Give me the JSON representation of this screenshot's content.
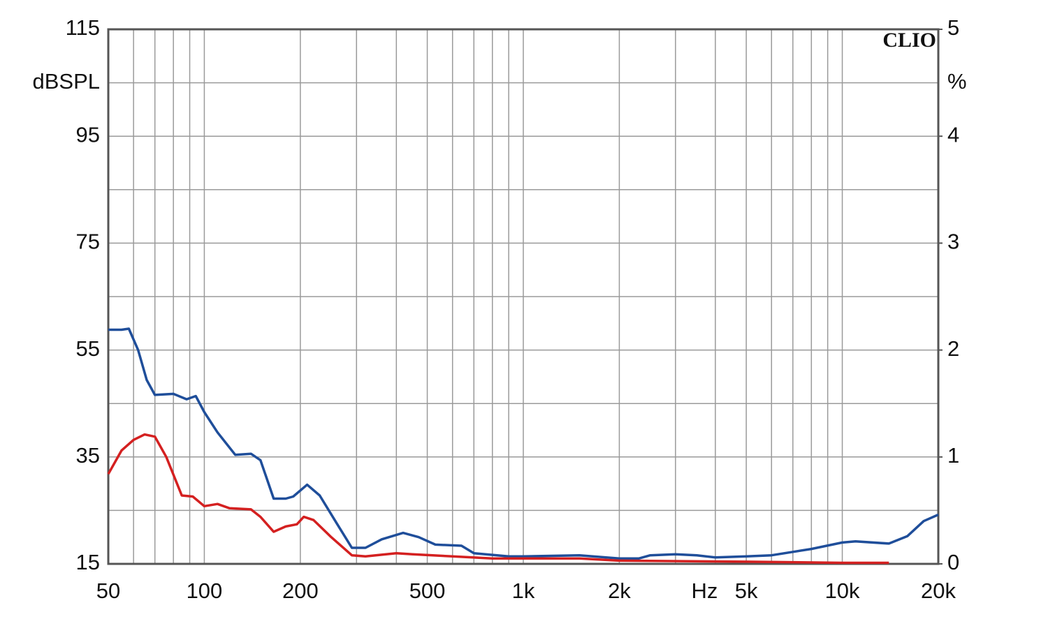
{
  "chart_data": {
    "type": "line",
    "brand": "CLIO",
    "x_label": "Hz",
    "y_label": "dBSPL",
    "y2_label": "%",
    "xscale": "log",
    "grid": true,
    "xlim": [
      50,
      20000
    ],
    "xticks": [
      50,
      100,
      200,
      500,
      {
        "value": 1000,
        "label": "1k"
      },
      {
        "value": 2000,
        "label": "2k"
      },
      {
        "value": 5000,
        "label": "5k"
      },
      {
        "value": 10000,
        "label": "10k"
      },
      {
        "value": 20000,
        "label": "20k"
      }
    ],
    "x_minor_grid": [
      60,
      70,
      80,
      90,
      300,
      400,
      600,
      700,
      800,
      900,
      3000,
      4000,
      6000,
      7000,
      8000,
      9000
    ],
    "ylim": [
      15,
      115
    ],
    "yticks": [
      15,
      35,
      55,
      75,
      95,
      115
    ],
    "y_minor_grid": [
      25,
      45,
      65,
      85,
      105
    ],
    "y2lim": [
      0,
      5
    ],
    "y2ticks": [
      0,
      1,
      2,
      3,
      4,
      5
    ],
    "series": [
      {
        "color": "#1f4e9a",
        "axis": "y2",
        "x": [
          50,
          55,
          58,
          62,
          66,
          70,
          80,
          88,
          94,
          100,
          110,
          125,
          140,
          150,
          165,
          180,
          190,
          210,
          230,
          260,
          290,
          320,
          360,
          420,
          470,
          530,
          640,
          700,
          900,
          1000,
          1500,
          2000,
          2300,
          2500,
          3000,
          3500,
          4000,
          5000,
          6000,
          8000,
          10000,
          11000,
          14000,
          16000,
          18000,
          20000
        ],
        "values": [
          2.19,
          2.19,
          2.2,
          2.0,
          1.72,
          1.58,
          1.59,
          1.54,
          1.57,
          1.42,
          1.23,
          1.02,
          1.03,
          0.97,
          0.61,
          0.61,
          0.63,
          0.74,
          0.64,
          0.38,
          0.15,
          0.15,
          0.23,
          0.29,
          0.25,
          0.18,
          0.17,
          0.1,
          0.07,
          0.07,
          0.08,
          0.05,
          0.05,
          0.08,
          0.09,
          0.08,
          0.06,
          0.07,
          0.08,
          0.14,
          0.2,
          0.21,
          0.19,
          0.26,
          0.4,
          0.46
        ]
      },
      {
        "color": "#d42020",
        "axis": "y2",
        "x": [
          50,
          55,
          60,
          65,
          70,
          76,
          85,
          92,
          100,
          110,
          120,
          140,
          150,
          165,
          180,
          195,
          205,
          220,
          250,
          290,
          320,
          400,
          450,
          600,
          800,
          1000,
          1500,
          2000,
          5000,
          10000,
          14000
        ],
        "values": [
          0.84,
          1.06,
          1.16,
          1.21,
          1.19,
          1.0,
          0.64,
          0.63,
          0.54,
          0.56,
          0.52,
          0.51,
          0.44,
          0.3,
          0.35,
          0.37,
          0.44,
          0.41,
          0.25,
          0.08,
          0.07,
          0.1,
          0.09,
          0.07,
          0.05,
          0.05,
          0.05,
          0.03,
          0.02,
          0.01,
          0.01
        ]
      }
    ]
  }
}
